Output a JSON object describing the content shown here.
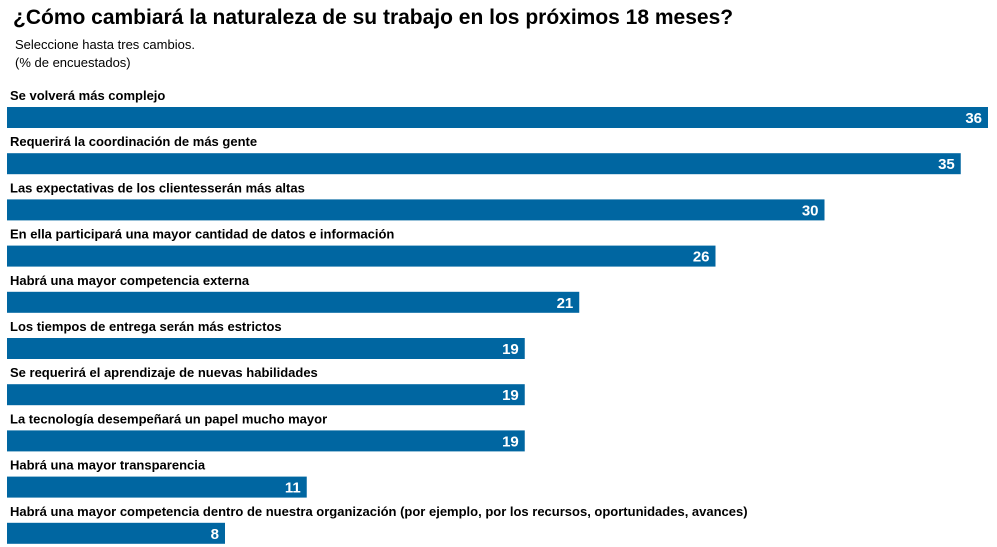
{
  "chart_data": {
    "type": "bar",
    "orientation": "horizontal",
    "title": "¿Cómo cambiará la naturaleza de su trabajo en los próximos 18 meses?",
    "subtitle_lines": [
      "Seleccione hasta tres cambios.",
      "(% de encuestados)"
    ],
    "categories": [
      "Se volverá más complejo",
      "Requerirá la coordinación de más gente",
      "Las expectativas de los clientesserán más altas",
      "En ella participará una mayor cantidad de datos e información",
      "Habrá una mayor competencia externa",
      "Los tiempos de entrega serán más estrictos",
      "Se requerirá el aprendizaje de nuevas habilidades",
      "La tecnología desempeñará un papel mucho mayor",
      "Habrá una mayor transparencia",
      "Habrá una mayor competencia dentro de nuestra organización (por ejemplo, por los recursos, oportunidades, avances)"
    ],
    "values": [
      36,
      35,
      30,
      26,
      21,
      19,
      19,
      19,
      11,
      8
    ],
    "xlim": [
      0,
      36
    ],
    "bar_color": "#0066a1",
    "value_label_color": "#ffffff",
    "grid": false,
    "legend": "none"
  }
}
